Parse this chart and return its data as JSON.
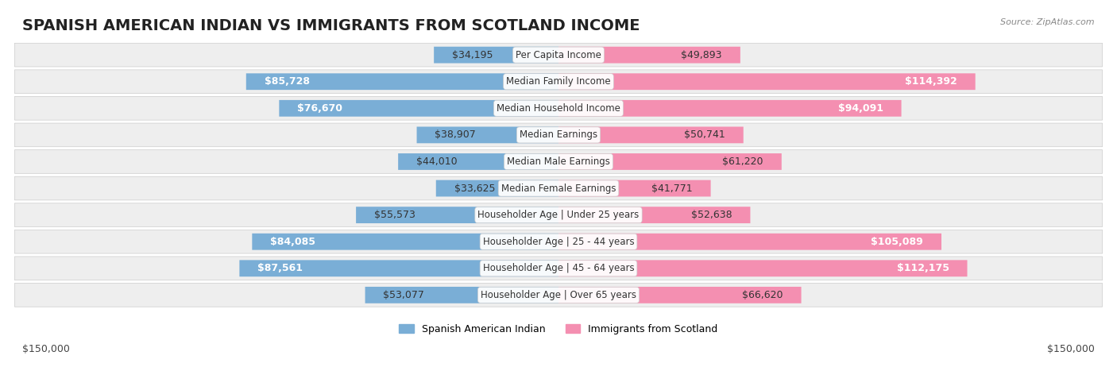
{
  "title": "SPANISH AMERICAN INDIAN VS IMMIGRANTS FROM SCOTLAND INCOME",
  "source": "Source: ZipAtlas.com",
  "categories": [
    "Per Capita Income",
    "Median Family Income",
    "Median Household Income",
    "Median Earnings",
    "Median Male Earnings",
    "Median Female Earnings",
    "Householder Age | Under 25 years",
    "Householder Age | 25 - 44 years",
    "Householder Age | 45 - 64 years",
    "Householder Age | Over 65 years"
  ],
  "left_values": [
    34195,
    85728,
    76670,
    38907,
    44010,
    33625,
    55573,
    84085,
    87561,
    53077
  ],
  "right_values": [
    49893,
    114392,
    94091,
    50741,
    61220,
    41771,
    52638,
    105089,
    112175,
    66620
  ],
  "left_labels": [
    "$34,195",
    "$85,728",
    "$76,670",
    "$38,907",
    "$44,010",
    "$33,625",
    "$55,573",
    "$84,085",
    "$87,561",
    "$53,077"
  ],
  "right_labels": [
    "$49,893",
    "$114,392",
    "$94,091",
    "$50,741",
    "$61,220",
    "$41,771",
    "$52,638",
    "$105,089",
    "$112,175",
    "$66,620"
  ],
  "left_color": "#7aaed6",
  "right_color": "#f48fb1",
  "left_color_dark": "#5b8fc4",
  "right_color_dark": "#e8668a",
  "max_value": 150000,
  "legend_left": "Spanish American Indian",
  "legend_right": "Immigrants from Scotland",
  "bg_color": "#f5f5f5",
  "bar_bg_color": "#e8e8e8",
  "title_fontsize": 14,
  "label_fontsize": 9,
  "category_fontsize": 8.5,
  "axis_label_left": "$150,000",
  "axis_label_right": "$150,000"
}
